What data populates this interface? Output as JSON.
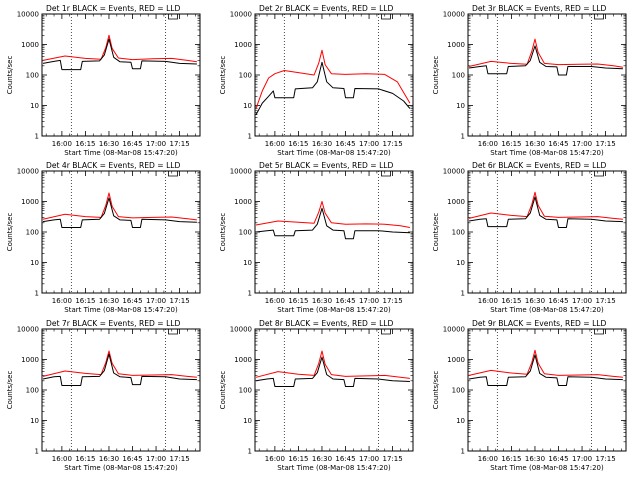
{
  "chart_data": [
    {
      "type": "line",
      "title": "Det 1r BLACK = Events, RED = LLD",
      "xlabel": "Start Time (08-Mar-08 15:47:20)",
      "ylabel": "Counts/sec",
      "yscale": "log",
      "ylim": [
        1,
        10000
      ],
      "ytick_labels": [
        "1",
        "10",
        "100",
        "1000",
        "10000"
      ],
      "xtick_labels": [
        "16:00",
        "16:15",
        "16:30",
        "16:45",
        "17:00",
        "17:15"
      ],
      "x_range": [
        "15:47:20",
        "17:28:00"
      ],
      "vlines": [
        "16:06",
        "17:06"
      ],
      "series": [
        {
          "color": "#000000",
          "x": [
            "15:48",
            "15:55",
            "15:59",
            "16:00",
            "16:12",
            "16:13",
            "16:24",
            "16:27",
            "16:30",
            "16:33",
            "16:37",
            "16:44",
            "16:45",
            "16:50",
            "16:51",
            "17:06",
            "17:15",
            "17:26"
          ],
          "y": [
            240,
            280,
            300,
            150,
            150,
            280,
            290,
            450,
            1500,
            380,
            270,
            260,
            160,
            160,
            290,
            280,
            240,
            230
          ]
        },
        {
          "color": "#ff0000",
          "x": [
            "15:48",
            "16:02",
            "16:15",
            "16:25",
            "16:28",
            "16:30",
            "16:32",
            "16:36",
            "16:45",
            "16:58",
            "17:10",
            "17:20",
            "17:26"
          ],
          "y": [
            300,
            420,
            350,
            330,
            800,
            2000,
            750,
            360,
            320,
            340,
            350,
            300,
            270
          ]
        }
      ]
    },
    {
      "type": "line",
      "title": "Det 2r BLACK = Events, RED = LLD",
      "xlabel": "Start Time (08-Mar-08 15:47:20)",
      "ylabel": "Counts/sec",
      "yscale": "log",
      "ylim": [
        1,
        10000
      ],
      "ytick_labels": [
        "1",
        "10",
        "100",
        "1000",
        "10000"
      ],
      "xtick_labels": [
        "16:00",
        "16:15",
        "16:30",
        "16:45",
        "17:00",
        "17:15"
      ],
      "x_range": [
        "15:47:20",
        "17:28:00"
      ],
      "vlines": [
        "16:06",
        "17:06"
      ],
      "series": [
        {
          "color": "#000000",
          "x": [
            "15:48",
            "15:52",
            "15:56",
            "15:59",
            "16:00",
            "16:12",
            "16:13",
            "16:24",
            "16:27",
            "16:30",
            "16:33",
            "16:37",
            "16:44",
            "16:45",
            "16:50",
            "16:51",
            "17:06",
            "17:15",
            "17:22",
            "17:26"
          ],
          "y": [
            5,
            12,
            20,
            30,
            18,
            18,
            35,
            38,
            60,
            260,
            60,
            38,
            36,
            18,
            18,
            36,
            35,
            25,
            14,
            8
          ]
        },
        {
          "color": "#ff0000",
          "x": [
            "15:48",
            "15:52",
            "15:56",
            "16:00",
            "16:06",
            "16:15",
            "16:25",
            "16:28",
            "16:30",
            "16:32",
            "16:36",
            "16:45",
            "16:58",
            "17:10",
            "17:18",
            "17:26"
          ],
          "y": [
            8,
            30,
            80,
            110,
            140,
            120,
            100,
            250,
            650,
            220,
            110,
            105,
            110,
            105,
            60,
            12
          ]
        }
      ]
    },
    {
      "type": "line",
      "title": "Det 3r BLACK = Events, RED = LLD",
      "xlabel": "Start Time (08-Mar-08 15:47:20)",
      "ylabel": "Counts/sec",
      "yscale": "log",
      "ylim": [
        1,
        10000
      ],
      "ytick_labels": [
        "1",
        "10",
        "100",
        "1000",
        "10000"
      ],
      "xtick_labels": [
        "16:00",
        "16:15",
        "16:30",
        "16:45",
        "17:00",
        "17:15"
      ],
      "x_range": [
        "15:47:20",
        "17:28:00"
      ],
      "vlines": [
        "16:06",
        "17:06"
      ],
      "series": [
        {
          "color": "#000000",
          "x": [
            "15:48",
            "15:55",
            "15:59",
            "16:00",
            "16:12",
            "16:13",
            "16:24",
            "16:27",
            "16:30",
            "16:33",
            "16:37",
            "16:44",
            "16:45",
            "16:50",
            "16:51",
            "17:06",
            "17:15",
            "17:26"
          ],
          "y": [
            170,
            190,
            200,
            110,
            110,
            190,
            200,
            300,
            900,
            260,
            190,
            185,
            100,
            100,
            190,
            190,
            170,
            160
          ]
        },
        {
          "color": "#ff0000",
          "x": [
            "15:48",
            "16:02",
            "16:15",
            "16:25",
            "16:28",
            "16:30",
            "16:32",
            "16:36",
            "16:45",
            "16:58",
            "17:10",
            "17:20",
            "17:26"
          ],
          "y": [
            190,
            280,
            240,
            225,
            600,
            1500,
            550,
            240,
            220,
            225,
            230,
            200,
            180
          ]
        }
      ]
    },
    {
      "type": "line",
      "title": "Det 4r BLACK = Events, RED = LLD",
      "xlabel": "Start Time (08-Mar-08 15:47:20)",
      "ylabel": "Counts/sec",
      "yscale": "log",
      "ylim": [
        1,
        10000
      ],
      "ytick_labels": [
        "1",
        "10",
        "100",
        "1000",
        "10000"
      ],
      "xtick_labels": [
        "16:00",
        "16:15",
        "16:30",
        "16:45",
        "17:00",
        "17:15"
      ],
      "x_range": [
        "15:47:20",
        "17:28:00"
      ],
      "vlines": [
        "16:06",
        "17:06"
      ],
      "series": [
        {
          "color": "#000000",
          "x": [
            "15:48",
            "15:55",
            "15:59",
            "16:00",
            "16:12",
            "16:13",
            "16:24",
            "16:27",
            "16:30",
            "16:33",
            "16:37",
            "16:44",
            "16:45",
            "16:50",
            "16:51",
            "17:06",
            "17:15",
            "17:26"
          ],
          "y": [
            220,
            250,
            260,
            140,
            140,
            250,
            260,
            400,
            1300,
            340,
            250,
            240,
            140,
            140,
            260,
            250,
            220,
            210
          ]
        },
        {
          "color": "#ff0000",
          "x": [
            "15:48",
            "16:02",
            "16:15",
            "16:25",
            "16:28",
            "16:30",
            "16:32",
            "16:36",
            "16:45",
            "16:58",
            "17:10",
            "17:20",
            "17:26"
          ],
          "y": [
            260,
            380,
            320,
            300,
            750,
            1900,
            700,
            320,
            290,
            300,
            310,
            270,
            250
          ]
        }
      ]
    },
    {
      "type": "line",
      "title": "Det 5r BLACK = Events, RED = LLD",
      "xlabel": "Start Time (08-Mar-08 15:47:20)",
      "ylabel": "Counts/sec",
      "yscale": "log",
      "ylim": [
        1,
        10000
      ],
      "ytick_labels": [
        "1",
        "10",
        "100",
        "1000",
        "10000"
      ],
      "xtick_labels": [
        "16:00",
        "16:15",
        "16:30",
        "16:45",
        "17:00",
        "17:15"
      ],
      "x_range": [
        "15:47:20",
        "17:28:00"
      ],
      "vlines": [
        "16:06",
        "17:06"
      ],
      "series": [
        {
          "color": "#000000",
          "x": [
            "15:48",
            "15:55",
            "15:59",
            "16:00",
            "16:12",
            "16:13",
            "16:24",
            "16:27",
            "16:30",
            "16:33",
            "16:37",
            "16:44",
            "16:45",
            "16:50",
            "16:51",
            "17:06",
            "17:15",
            "17:26"
          ],
          "y": [
            100,
            110,
            115,
            75,
            75,
            110,
            115,
            180,
            600,
            160,
            115,
            110,
            60,
            60,
            110,
            110,
            100,
            95
          ]
        },
        {
          "color": "#ff0000",
          "x": [
            "15:48",
            "16:02",
            "16:15",
            "16:25",
            "16:28",
            "16:30",
            "16:32",
            "16:36",
            "16:45",
            "16:58",
            "17:10",
            "17:20",
            "17:26"
          ],
          "y": [
            170,
            230,
            210,
            195,
            450,
            1000,
            420,
            200,
            180,
            185,
            180,
            160,
            140
          ]
        }
      ]
    },
    {
      "type": "line",
      "title": "Det 6r BLACK = Events, RED = LLD",
      "xlabel": "Start Time (08-Mar-08 15:47:20)",
      "ylabel": "Counts/sec",
      "yscale": "log",
      "ylim": [
        1,
        10000
      ],
      "ytick_labels": [
        "1",
        "10",
        "100",
        "1000",
        "10000"
      ],
      "xtick_labels": [
        "16:00",
        "16:15",
        "16:30",
        "16:45",
        "17:00",
        "17:15"
      ],
      "x_range": [
        "15:47:20",
        "17:28:00"
      ],
      "vlines": [
        "16:06",
        "17:06"
      ],
      "series": [
        {
          "color": "#000000",
          "x": [
            "15:48",
            "15:55",
            "15:59",
            "16:00",
            "16:12",
            "16:13",
            "16:24",
            "16:27",
            "16:30",
            "16:33",
            "16:37",
            "16:44",
            "16:45",
            "16:50",
            "16:51",
            "17:06",
            "17:15",
            "17:26"
          ],
          "y": [
            230,
            260,
            270,
            150,
            150,
            260,
            270,
            420,
            1400,
            350,
            260,
            250,
            140,
            140,
            270,
            260,
            230,
            220
          ]
        },
        {
          "color": "#ff0000",
          "x": [
            "15:48",
            "16:02",
            "16:15",
            "16:25",
            "16:28",
            "16:30",
            "16:32",
            "16:36",
            "16:45",
            "16:58",
            "17:10",
            "17:20",
            "17:26"
          ],
          "y": [
            280,
            420,
            350,
            320,
            800,
            2000,
            750,
            330,
            300,
            310,
            320,
            280,
            260
          ]
        }
      ]
    },
    {
      "type": "line",
      "title": "Det 7r BLACK = Events, RED = LLD",
      "xlabel": "Start Time (08-Mar-08 15:47:20)",
      "ylabel": "Counts/sec",
      "yscale": "log",
      "ylim": [
        1,
        10000
      ],
      "ytick_labels": [
        "1",
        "10",
        "100",
        "1000",
        "10000"
      ],
      "xtick_labels": [
        "16:00",
        "16:15",
        "16:30",
        "16:45",
        "17:00",
        "17:15"
      ],
      "x_range": [
        "15:47:20",
        "17:28:00"
      ],
      "vlines": [
        "16:06",
        "17:06"
      ],
      "series": [
        {
          "color": "#000000",
          "x": [
            "15:48",
            "15:55",
            "15:59",
            "16:00",
            "16:12",
            "16:13",
            "16:24",
            "16:27",
            "16:30",
            "16:33",
            "16:37",
            "16:44",
            "16:45",
            "16:50",
            "16:51",
            "17:06",
            "17:15",
            "17:26"
          ],
          "y": [
            230,
            270,
            280,
            140,
            140,
            270,
            280,
            430,
            1500,
            360,
            270,
            255,
            150,
            150,
            280,
            270,
            230,
            220
          ]
        },
        {
          "color": "#ff0000",
          "x": [
            "15:48",
            "16:02",
            "16:15",
            "16:25",
            "16:28",
            "16:30",
            "16:32",
            "16:36",
            "16:45",
            "16:58",
            "17:10",
            "17:20",
            "17:26"
          ],
          "y": [
            280,
            420,
            350,
            320,
            800,
            1900,
            750,
            340,
            300,
            310,
            320,
            280,
            260
          ]
        }
      ]
    },
    {
      "type": "line",
      "title": "Det 8r BLACK = Events, RED = LLD",
      "xlabel": "Start Time (08-Mar-08 15:47:20)",
      "ylabel": "Counts/sec",
      "yscale": "log",
      "ylim": [
        1,
        10000
      ],
      "ytick_labels": [
        "1",
        "10",
        "100",
        "1000",
        "10000"
      ],
      "xtick_labels": [
        "16:00",
        "16:15",
        "16:30",
        "16:45",
        "17:00",
        "17:15"
      ],
      "x_range": [
        "15:47:20",
        "17:28:00"
      ],
      "vlines": [
        "16:06",
        "17:06"
      ],
      "series": [
        {
          "color": "#000000",
          "x": [
            "15:48",
            "15:55",
            "15:59",
            "16:00",
            "16:12",
            "16:13",
            "16:24",
            "16:27",
            "16:30",
            "16:33",
            "16:37",
            "16:44",
            "16:45",
            "16:50",
            "16:51",
            "17:06",
            "17:15",
            "17:26"
          ],
          "y": [
            200,
            230,
            240,
            130,
            130,
            230,
            240,
            370,
            1200,
            320,
            230,
            220,
            130,
            130,
            240,
            230,
            200,
            190
          ]
        },
        {
          "color": "#ff0000",
          "x": [
            "15:48",
            "16:02",
            "16:15",
            "16:25",
            "16:28",
            "16:30",
            "16:32",
            "16:36",
            "16:45",
            "16:58",
            "17:10",
            "17:20",
            "17:26"
          ],
          "y": [
            260,
            400,
            330,
            300,
            750,
            1900,
            700,
            320,
            280,
            290,
            300,
            260,
            240
          ]
        }
      ]
    },
    {
      "type": "line",
      "title": "Det 9r BLACK = Events, RED = LLD",
      "xlabel": "Start Time (08-Mar-08 15:47:20)",
      "ylabel": "Counts/sec",
      "yscale": "log",
      "ylim": [
        1,
        10000
      ],
      "ytick_labels": [
        "1",
        "10",
        "100",
        "1000",
        "10000"
      ],
      "xtick_labels": [
        "16:00",
        "16:15",
        "16:30",
        "16:45",
        "17:00",
        "17:15"
      ],
      "x_range": [
        "15:47:20",
        "17:28:00"
      ],
      "vlines": [
        "16:06",
        "17:06"
      ],
      "series": [
        {
          "color": "#000000",
          "x": [
            "15:48",
            "15:55",
            "15:59",
            "16:00",
            "16:12",
            "16:13",
            "16:24",
            "16:27",
            "16:30",
            "16:33",
            "16:37",
            "16:44",
            "16:45",
            "16:50",
            "16:51",
            "17:06",
            "17:15",
            "17:26"
          ],
          "y": [
            230,
            260,
            270,
            140,
            140,
            260,
            270,
            420,
            1400,
            350,
            260,
            250,
            140,
            140,
            270,
            260,
            230,
            220
          ]
        },
        {
          "color": "#ff0000",
          "x": [
            "15:48",
            "16:02",
            "16:15",
            "16:25",
            "16:28",
            "16:30",
            "16:32",
            "16:36",
            "16:45",
            "16:58",
            "17:10",
            "17:20",
            "17:26"
          ],
          "y": [
            300,
            440,
            360,
            330,
            800,
            2000,
            760,
            340,
            300,
            310,
            320,
            280,
            260
          ]
        }
      ]
    }
  ]
}
